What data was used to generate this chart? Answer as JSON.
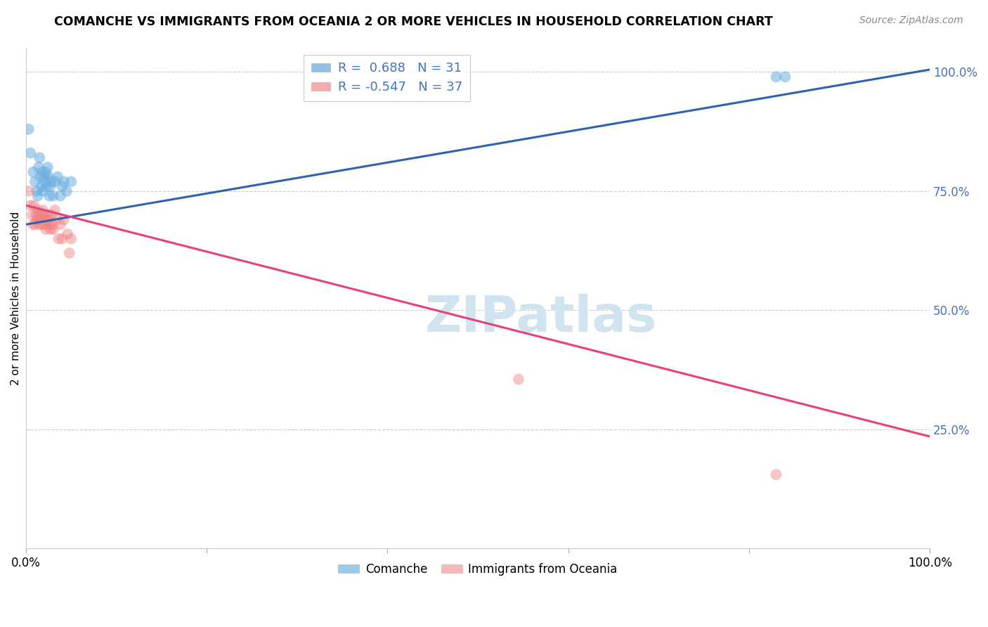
{
  "title": "COMANCHE VS IMMIGRANTS FROM OCEANIA 2 OR MORE VEHICLES IN HOUSEHOLD CORRELATION CHART",
  "source": "Source: ZipAtlas.com",
  "ylabel": "2 or more Vehicles in Household",
  "legend_label1": "Comanche",
  "legend_label2": "Immigrants from Oceania",
  "R1": 0.688,
  "N1": 31,
  "R2": -0.547,
  "N2": 37,
  "blue_color": "#6aaee0",
  "pink_color": "#f08080",
  "blue_line_color": "#3060b0",
  "pink_line_color": "#e8407a",
  "watermark_color": "#d0e4f0",
  "xlim": [
    0.0,
    1.0
  ],
  "ylim": [
    0.0,
    1.05
  ],
  "blue_line_x0": 0.0,
  "blue_line_y0": 0.68,
  "blue_line_x1": 1.0,
  "blue_line_y1": 1.005,
  "pink_line_x0": 0.0,
  "pink_line_y0": 0.72,
  "pink_line_x1": 1.0,
  "pink_line_y1": 0.235,
  "comanche_x": [
    0.003,
    0.005,
    0.008,
    0.01,
    0.012,
    0.013,
    0.014,
    0.015,
    0.016,
    0.017,
    0.018,
    0.019,
    0.02,
    0.021,
    0.022,
    0.023,
    0.024,
    0.025,
    0.026,
    0.027,
    0.028,
    0.03,
    0.032,
    0.035,
    0.038,
    0.04,
    0.042,
    0.045,
    0.05,
    0.83,
    0.84
  ],
  "comanche_y": [
    0.88,
    0.83,
    0.79,
    0.77,
    0.75,
    0.74,
    0.8,
    0.82,
    0.78,
    0.76,
    0.79,
    0.75,
    0.78,
    0.77,
    0.79,
    0.76,
    0.8,
    0.78,
    0.74,
    0.76,
    0.77,
    0.74,
    0.77,
    0.78,
    0.74,
    0.76,
    0.77,
    0.75,
    0.77,
    0.99,
    0.99
  ],
  "oceania_x": [
    0.003,
    0.005,
    0.007,
    0.008,
    0.009,
    0.01,
    0.011,
    0.012,
    0.013,
    0.014,
    0.015,
    0.016,
    0.017,
    0.018,
    0.019,
    0.02,
    0.021,
    0.022,
    0.023,
    0.024,
    0.025,
    0.026,
    0.027,
    0.028,
    0.029,
    0.03,
    0.032,
    0.034,
    0.036,
    0.038,
    0.04,
    0.042,
    0.046,
    0.048,
    0.05,
    0.545,
    0.83
  ],
  "oceania_y": [
    0.75,
    0.72,
    0.7,
    0.68,
    0.72,
    0.68,
    0.7,
    0.69,
    0.71,
    0.7,
    0.68,
    0.69,
    0.7,
    0.68,
    0.71,
    0.7,
    0.68,
    0.67,
    0.69,
    0.7,
    0.69,
    0.68,
    0.67,
    0.7,
    0.68,
    0.67,
    0.71,
    0.69,
    0.65,
    0.68,
    0.65,
    0.69,
    0.66,
    0.62,
    0.65,
    0.355,
    0.155
  ]
}
